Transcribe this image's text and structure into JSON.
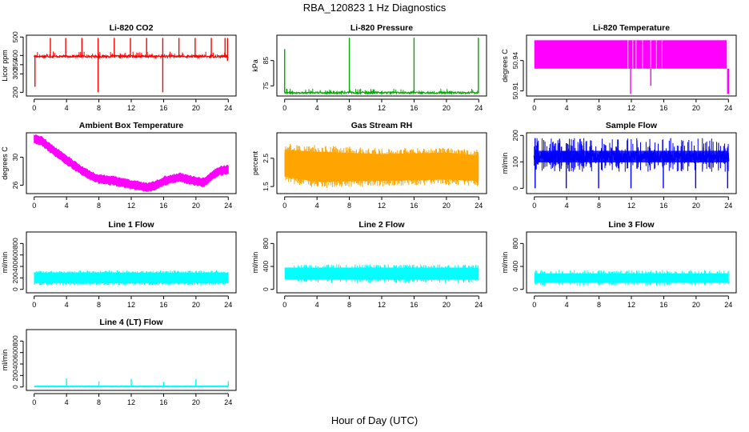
{
  "figure": {
    "title": "RBA_120823  1 Hz Diagnostics",
    "xlabel": "Hour of Day (UTC)"
  },
  "chart_data": [
    {
      "id": "co2",
      "type": "line",
      "title": "Li-820 CO2",
      "ylabel": "Licor ppm",
      "color": "#ff0000",
      "xlim": [
        0,
        24
      ],
      "ylim": [
        180,
        510
      ],
      "xticks": [
        0,
        4,
        8,
        12,
        16,
        20,
        24
      ],
      "yticks": [
        200,
        300,
        350,
        400,
        500
      ],
      "ytick_labels": [
        "200",
        "300",
        "350",
        "400",
        "500"
      ],
      "series": {
        "kind": "band",
        "base": 395,
        "noise": 6,
        "thick": false,
        "spikes": [
          {
            "x": 0.1,
            "lo": 230,
            "hi": 400
          },
          {
            "x": 2.0,
            "lo": 390,
            "hi": 495
          },
          {
            "x": 3.9,
            "lo": 390,
            "hi": 495
          },
          {
            "x": 5.9,
            "lo": 390,
            "hi": 495
          },
          {
            "x": 7.9,
            "lo": 200,
            "hi": 495
          },
          {
            "x": 9.9,
            "lo": 390,
            "hi": 495
          },
          {
            "x": 11.9,
            "lo": 390,
            "hi": 495
          },
          {
            "x": 13.9,
            "lo": 390,
            "hi": 495
          },
          {
            "x": 15.9,
            "lo": 200,
            "hi": 495
          },
          {
            "x": 17.9,
            "lo": 390,
            "hi": 495
          },
          {
            "x": 19.9,
            "lo": 390,
            "hi": 495
          },
          {
            "x": 21.9,
            "lo": 390,
            "hi": 495
          },
          {
            "x": 23.6,
            "lo": 390,
            "hi": 495
          },
          {
            "x": 23.9,
            "lo": 370,
            "hi": 495
          }
        ]
      }
    },
    {
      "id": "pressure",
      "type": "line",
      "title": "Li-820 Pressure",
      "ylabel": "kPa",
      "color": "#00aa00",
      "xlim": [
        0,
        24
      ],
      "ylim": [
        71,
        95
      ],
      "xticks": [
        0,
        4,
        8,
        12,
        16,
        20,
        24
      ],
      "yticks": [
        75,
        85
      ],
      "ytick_labels": [
        "75",
        "85"
      ],
      "series": {
        "kind": "band",
        "base": 72.3,
        "noise": 0.35,
        "thick": false,
        "spikes": [
          {
            "x": 0.0,
            "lo": 72.3,
            "hi": 89.5
          },
          {
            "x": 8.0,
            "lo": 72.3,
            "hi": 94
          },
          {
            "x": 16.0,
            "lo": 72.3,
            "hi": 94
          },
          {
            "x": 23.95,
            "lo": 72.3,
            "hi": 94
          }
        ]
      }
    },
    {
      "id": "licor_temp",
      "type": "line",
      "title": "Li-820 Temperature",
      "ylabel": "degrees C",
      "color": "#ff00ff",
      "xlim": [
        0,
        24
      ],
      "ylim": [
        50.905,
        50.965
      ],
      "xticks": [
        0,
        4,
        8,
        12,
        16,
        20,
        24
      ],
      "yticks": [
        50.91,
        50.94
      ],
      "ytick_labels": [
        "50.91",
        "50.94"
      ],
      "series": {
        "kind": "block",
        "lo": 50.932,
        "hi": 50.96,
        "gaps": [
          [
            11.5,
            11.6
          ],
          [
            12.1,
            12.2
          ],
          [
            12.5,
            12.6
          ],
          [
            13.3,
            13.4
          ],
          [
            14.3,
            14.45
          ],
          [
            15.0,
            15.1
          ],
          [
            15.7,
            15.8
          ],
          [
            23.75,
            24.0
          ]
        ],
        "drops": [
          {
            "x": 11.9,
            "lo": 50.907,
            "hi": 50.932
          },
          {
            "x": 14.4,
            "lo": 50.915,
            "hi": 50.932
          },
          {
            "x": 23.9,
            "lo": 50.907,
            "hi": 50.932
          },
          {
            "x": 24.0,
            "lo": 50.907,
            "hi": 50.932
          }
        ]
      }
    },
    {
      "id": "box_temp",
      "type": "line",
      "title": "Ambient Box Temperature",
      "ylabel": "degrees C",
      "color": "#ff00ff",
      "xlim": [
        0,
        24
      ],
      "ylim": [
        24.8,
        33.5
      ],
      "xticks": [
        0,
        4,
        8,
        12,
        16,
        20,
        24
      ],
      "yticks": [
        26,
        30
      ],
      "ytick_labels": [
        "26",
        "30"
      ],
      "series": {
        "kind": "curve",
        "half_width": 0.55,
        "points": [
          [
            0,
            32.6
          ],
          [
            1,
            32.3
          ],
          [
            2,
            31.3
          ],
          [
            4,
            29.6
          ],
          [
            6,
            28.0
          ],
          [
            7,
            27.3
          ],
          [
            8,
            26.9
          ],
          [
            10,
            26.6
          ],
          [
            12,
            26.1
          ],
          [
            14,
            25.7
          ],
          [
            15,
            26.0
          ],
          [
            16,
            26.6
          ],
          [
            18,
            27.1
          ],
          [
            20,
            26.6
          ],
          [
            21,
            26.4
          ],
          [
            22,
            27.4
          ],
          [
            23,
            28.1
          ],
          [
            24,
            28.2
          ]
        ]
      }
    },
    {
      "id": "rh",
      "type": "line",
      "title": "Gas Stream RH",
      "ylabel": "percent",
      "color": "#ffa500",
      "xlim": [
        0,
        24
      ],
      "ylim": [
        1.25,
        3.4
      ],
      "xticks": [
        0,
        4,
        8,
        12,
        16,
        20,
        24
      ],
      "yticks": [
        1.5,
        2.5
      ],
      "ytick_labels": [
        "1.5",
        "2.5"
      ],
      "series": {
        "kind": "noise",
        "density": 260,
        "lo_points": [
          [
            0,
            1.7
          ],
          [
            4,
            1.5
          ],
          [
            12,
            1.55
          ],
          [
            20,
            1.6
          ],
          [
            24,
            1.55
          ]
        ],
        "hi_points": [
          [
            0,
            2.95
          ],
          [
            4,
            2.9
          ],
          [
            12,
            2.8
          ],
          [
            20,
            2.85
          ],
          [
            24,
            2.75
          ]
        ]
      }
    },
    {
      "id": "sample_flow",
      "type": "line",
      "title": "Sample Flow",
      "ylabel": "ml/min",
      "color": "#0000ff",
      "xlim": [
        0,
        24
      ],
      "ylim": [
        -20,
        210
      ],
      "xticks": [
        0,
        4,
        8,
        12,
        16,
        20,
        24
      ],
      "yticks": [
        0,
        100,
        200
      ],
      "ytick_labels": [
        "0",
        "100",
        "200"
      ],
      "series": {
        "kind": "band",
        "base": 120,
        "noise": 22,
        "thick": true,
        "spikes": [
          {
            "x": 0.1,
            "lo": 0,
            "hi": 190
          },
          {
            "x": 3.95,
            "lo": 0,
            "hi": 120
          },
          {
            "x": 7.95,
            "lo": 0,
            "hi": 120
          },
          {
            "x": 11.95,
            "lo": 0,
            "hi": 120
          },
          {
            "x": 15.95,
            "lo": 0,
            "hi": 120
          },
          {
            "x": 19.95,
            "lo": 0,
            "hi": 120
          },
          {
            "x": 23.9,
            "lo": 0,
            "hi": 120
          }
        ]
      }
    },
    {
      "id": "line1",
      "type": "line",
      "title": "Line 1 Flow",
      "ylabel": "ml/min",
      "color": "#00ffff",
      "xlim": [
        0,
        24
      ],
      "ylim": [
        -60,
        1000
      ],
      "xticks": [
        0,
        4,
        8,
        12,
        16,
        20,
        24
      ],
      "yticks": [
        0,
        200,
        400,
        600,
        800
      ],
      "ytick_labels": [
        "0",
        "200",
        "400",
        "600",
        "800"
      ],
      "series": {
        "kind": "noise",
        "density": 260,
        "lo_points": [
          [
            0,
            80
          ],
          [
            24,
            80
          ]
        ],
        "hi_points": [
          [
            0,
            320
          ],
          [
            24,
            320
          ]
        ]
      }
    },
    {
      "id": "line2",
      "type": "line",
      "title": "Line 2 Flow",
      "ylabel": "ml/min",
      "color": "#00ffff",
      "xlim": [
        0,
        24
      ],
      "ylim": [
        -60,
        1000
      ],
      "xticks": [
        0,
        4,
        8,
        12,
        16,
        20,
        24
      ],
      "yticks": [
        0,
        400,
        800
      ],
      "ytick_labels": [
        "0",
        "400",
        "800"
      ],
      "series": {
        "kind": "block",
        "lo": 170,
        "hi": 380,
        "gaps": [],
        "drops": []
      }
    },
    {
      "id": "line3",
      "type": "line",
      "title": "Line 3 Flow",
      "ylabel": "ml/min",
      "color": "#00ffff",
      "xlim": [
        0,
        24
      ],
      "ylim": [
        -60,
        1000
      ],
      "xticks": [
        0,
        4,
        8,
        12,
        16,
        20,
        24
      ],
      "yticks": [
        0,
        400,
        800
      ],
      "ytick_labels": [
        "0",
        "400",
        "800"
      ],
      "series": {
        "kind": "block",
        "lo": 120,
        "hi": 280,
        "gaps": [],
        "drops": []
      }
    },
    {
      "id": "line4",
      "type": "line",
      "title": "Line 4 (LT) Flow",
      "ylabel": "ml/min",
      "color": "#00ffff",
      "xlim": [
        0,
        24
      ],
      "ylim": [
        -60,
        1000
      ],
      "xticks": [
        0,
        4,
        8,
        12,
        16,
        20,
        24
      ],
      "yticks": [
        0,
        200,
        400,
        600,
        800
      ],
      "ytick_labels": [
        "0",
        "200",
        "400",
        "600",
        "800"
      ],
      "series": {
        "kind": "band",
        "base": 10,
        "noise": 3,
        "thick": true,
        "spikes": [
          {
            "x": 4.0,
            "lo": 10,
            "hi": 150
          },
          {
            "x": 8.0,
            "lo": 10,
            "hi": 100
          },
          {
            "x": 12.0,
            "lo": 10,
            "hi": 140
          },
          {
            "x": 16.0,
            "lo": 10,
            "hi": 90
          },
          {
            "x": 20.0,
            "lo": 10,
            "hi": 140
          },
          {
            "x": 24.0,
            "lo": 10,
            "hi": 100
          }
        ]
      }
    }
  ]
}
